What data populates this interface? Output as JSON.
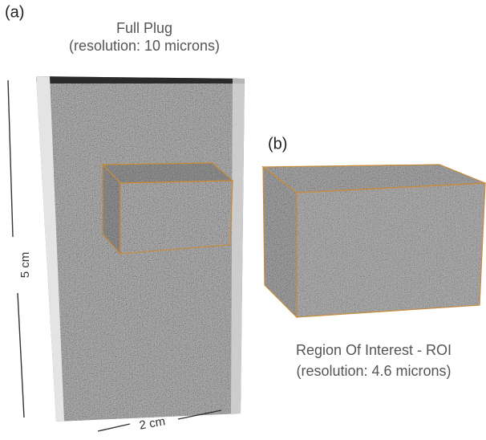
{
  "panel_a": {
    "label": "(a)",
    "title": "Full Plug",
    "subtitle": "(resolution: 10 microns)",
    "height_label": "5 cm",
    "width_label": "2 cm"
  },
  "panel_b": {
    "label": "(b)",
    "title": "Region Of Interest - ROI",
    "subtitle": "(resolution: 4.6 microns)"
  }
}
